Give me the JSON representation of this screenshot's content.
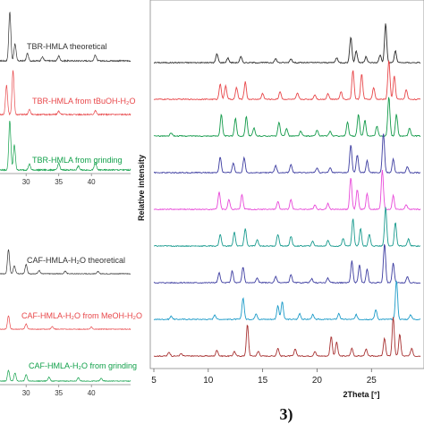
{
  "chart_data": [
    {
      "type": "line",
      "panel": "left-top",
      "xlim": [
        26,
        46
      ],
      "x_ticks": [
        30,
        35,
        40
      ],
      "colors": [
        "#333333",
        "#e8474a",
        "#11a04a"
      ],
      "series": [
        {
          "name": "TBR-HMLA theoretical",
          "peaks": [
            [
              27.5,
              1.0
            ],
            [
              28.3,
              0.35
            ],
            [
              30.2,
              0.15
            ],
            [
              32.5,
              0.08
            ],
            [
              35.0,
              0.1
            ],
            [
              40.6,
              0.12
            ]
          ]
        },
        {
          "name": "TBR-HMLA from tBuOH-H₂O",
          "peaks": [
            [
              27.0,
              0.6
            ],
            [
              28.0,
              0.9
            ],
            [
              30.5,
              0.1
            ],
            [
              35.0,
              0.07
            ],
            [
              40.6,
              0.08
            ]
          ]
        },
        {
          "name": "TBR-HMLA from grinding",
          "peaks": [
            [
              27.5,
              1.0
            ],
            [
              28.2,
              0.5
            ],
            [
              30.5,
              0.12
            ],
            [
              35.0,
              0.14
            ],
            [
              38.0,
              0.08
            ],
            [
              40.6,
              0.16
            ]
          ]
        }
      ]
    },
    {
      "type": "line",
      "panel": "left-bottom",
      "xlim": [
        26,
        46
      ],
      "x_ticks": [
        30,
        35,
        40
      ],
      "colors": [
        "#333333",
        "#e8474a",
        "#11a04a"
      ],
      "series": [
        {
          "name": "CAF-HMLA-H₂O theoretical",
          "peaks": [
            [
              27.3,
              0.9
            ],
            [
              28.2,
              0.3
            ],
            [
              30.0,
              0.35
            ],
            [
              32.0,
              0.12
            ],
            [
              36.0,
              0.1
            ],
            [
              41.0,
              0.08
            ]
          ]
        },
        {
          "name": "CAF-HMLA-H₂O from MeOH-H₂O",
          "peaks": [
            [
              27.3,
              0.5
            ],
            [
              30.0,
              0.2
            ],
            [
              34.0,
              0.1
            ],
            [
              40.0,
              0.08
            ]
          ]
        },
        {
          "name": "CAF-HMLA-H₂O from grinding",
          "peaks": [
            [
              27.3,
              0.4
            ],
            [
              28.3,
              0.3
            ],
            [
              30.0,
              0.25
            ],
            [
              33.5,
              0.15
            ],
            [
              38.0,
              0.12
            ],
            [
              41.5,
              0.1
            ]
          ]
        }
      ]
    },
    {
      "type": "line",
      "panel": "right",
      "xlabel": "2Theta [°]",
      "ylabel": "Relative intensity",
      "xlim": [
        5,
        29.5
      ],
      "x_ticks": [
        5,
        10,
        15,
        20,
        25
      ],
      "series": [
        {
          "color": "#2b2b2b",
          "peaks": [
            [
              10.8,
              0.22
            ],
            [
              11.8,
              0.12
            ],
            [
              13.0,
              0.15
            ],
            [
              16.2,
              0.1
            ],
            [
              17.6,
              0.1
            ],
            [
              21.8,
              0.12
            ],
            [
              23.1,
              0.65
            ],
            [
              23.6,
              0.3
            ],
            [
              24.5,
              0.15
            ],
            [
              25.8,
              0.2
            ],
            [
              26.3,
              1.0
            ],
            [
              27.2,
              0.3
            ]
          ]
        },
        {
          "color": "#e8474a",
          "peaks": [
            [
              11.1,
              0.4
            ],
            [
              11.6,
              0.35
            ],
            [
              12.6,
              0.3
            ],
            [
              13.4,
              0.45
            ],
            [
              15.0,
              0.15
            ],
            [
              16.6,
              0.2
            ],
            [
              18.2,
              0.15
            ],
            [
              19.8,
              0.12
            ],
            [
              21.0,
              0.15
            ],
            [
              22.2,
              0.2
            ],
            [
              23.3,
              0.75
            ],
            [
              24.1,
              0.65
            ],
            [
              25.2,
              0.3
            ],
            [
              26.6,
              1.0
            ],
            [
              27.1,
              0.6
            ],
            [
              28.2,
              0.25
            ]
          ]
        },
        {
          "color": "#139a4a",
          "peaks": [
            [
              6.6,
              0.08
            ],
            [
              11.2,
              0.55
            ],
            [
              12.5,
              0.45
            ],
            [
              13.5,
              0.5
            ],
            [
              14.2,
              0.2
            ],
            [
              16.5,
              0.35
            ],
            [
              17.2,
              0.2
            ],
            [
              18.5,
              0.12
            ],
            [
              20.0,
              0.15
            ],
            [
              21.2,
              0.12
            ],
            [
              22.8,
              0.35
            ],
            [
              23.8,
              0.55
            ],
            [
              24.4,
              0.4
            ],
            [
              25.5,
              0.25
            ],
            [
              26.6,
              1.0
            ],
            [
              27.3,
              0.55
            ],
            [
              28.5,
              0.2
            ]
          ]
        },
        {
          "color": "#3c3ca0",
          "peaks": [
            [
              11.1,
              0.4
            ],
            [
              12.3,
              0.25
            ],
            [
              13.3,
              0.38
            ],
            [
              16.2,
              0.18
            ],
            [
              17.6,
              0.2
            ],
            [
              20.0,
              0.12
            ],
            [
              21.2,
              0.12
            ],
            [
              23.1,
              0.7
            ],
            [
              23.7,
              0.45
            ],
            [
              24.6,
              0.3
            ],
            [
              26.1,
              1.0
            ],
            [
              27.0,
              0.35
            ],
            [
              28.3,
              0.15
            ]
          ]
        },
        {
          "color": "#e84ad9",
          "peaks": [
            [
              11.0,
              0.45
            ],
            [
              11.9,
              0.25
            ],
            [
              13.1,
              0.38
            ],
            [
              16.4,
              0.2
            ],
            [
              17.6,
              0.25
            ],
            [
              19.8,
              0.12
            ],
            [
              21.0,
              0.15
            ],
            [
              23.1,
              0.8
            ],
            [
              23.7,
              0.5
            ],
            [
              24.6,
              0.4
            ],
            [
              26.0,
              1.0
            ],
            [
              27.0,
              0.35
            ],
            [
              28.2,
              0.12
            ]
          ]
        },
        {
          "color": "#189a8e",
          "peaks": [
            [
              11.1,
              0.3
            ],
            [
              12.4,
              0.35
            ],
            [
              13.4,
              0.45
            ],
            [
              14.5,
              0.15
            ],
            [
              16.4,
              0.3
            ],
            [
              17.6,
              0.25
            ],
            [
              19.6,
              0.12
            ],
            [
              21.0,
              0.15
            ],
            [
              22.4,
              0.2
            ],
            [
              23.3,
              0.7
            ],
            [
              24.0,
              0.45
            ],
            [
              24.8,
              0.3
            ],
            [
              26.3,
              1.0
            ],
            [
              27.2,
              0.6
            ],
            [
              28.4,
              0.18
            ]
          ]
        },
        {
          "color": "#3c3ca0",
          "peaks": [
            [
              11.0,
              0.25
            ],
            [
              12.2,
              0.3
            ],
            [
              13.2,
              0.4
            ],
            [
              14.5,
              0.12
            ],
            [
              16.2,
              0.15
            ],
            [
              17.6,
              0.2
            ],
            [
              19.5,
              0.1
            ],
            [
              21.0,
              0.12
            ],
            [
              23.2,
              0.55
            ],
            [
              23.9,
              0.45
            ],
            [
              24.6,
              0.35
            ],
            [
              26.2,
              1.0
            ],
            [
              27.0,
              0.5
            ],
            [
              28.3,
              0.15
            ]
          ]
        },
        {
          "color": "#1a9ac8",
          "peaks": [
            [
              6.6,
              0.08
            ],
            [
              10.6,
              0.12
            ],
            [
              13.2,
              0.55
            ],
            [
              14.4,
              0.15
            ],
            [
              16.4,
              0.35
            ],
            [
              16.8,
              0.45
            ],
            [
              18.4,
              0.15
            ],
            [
              19.6,
              0.12
            ],
            [
              22.0,
              0.15
            ],
            [
              23.6,
              0.12
            ],
            [
              25.4,
              0.25
            ],
            [
              27.3,
              1.0
            ],
            [
              28.6,
              0.12
            ]
          ]
        },
        {
          "color": "#a83232",
          "peaks": [
            [
              6.4,
              0.1
            ],
            [
              7.5,
              0.06
            ],
            [
              10.8,
              0.15
            ],
            [
              12.4,
              0.12
            ],
            [
              13.6,
              0.8
            ],
            [
              14.6,
              0.12
            ],
            [
              16.4,
              0.2
            ],
            [
              18.0,
              0.18
            ],
            [
              19.8,
              0.12
            ],
            [
              21.3,
              0.5
            ],
            [
              21.8,
              0.35
            ],
            [
              23.2,
              0.2
            ],
            [
              24.5,
              0.18
            ],
            [
              26.2,
              0.45
            ],
            [
              27.0,
              1.0
            ],
            [
              27.6,
              0.55
            ],
            [
              28.7,
              0.2
            ]
          ]
        }
      ]
    }
  ],
  "panel_number": "3)"
}
